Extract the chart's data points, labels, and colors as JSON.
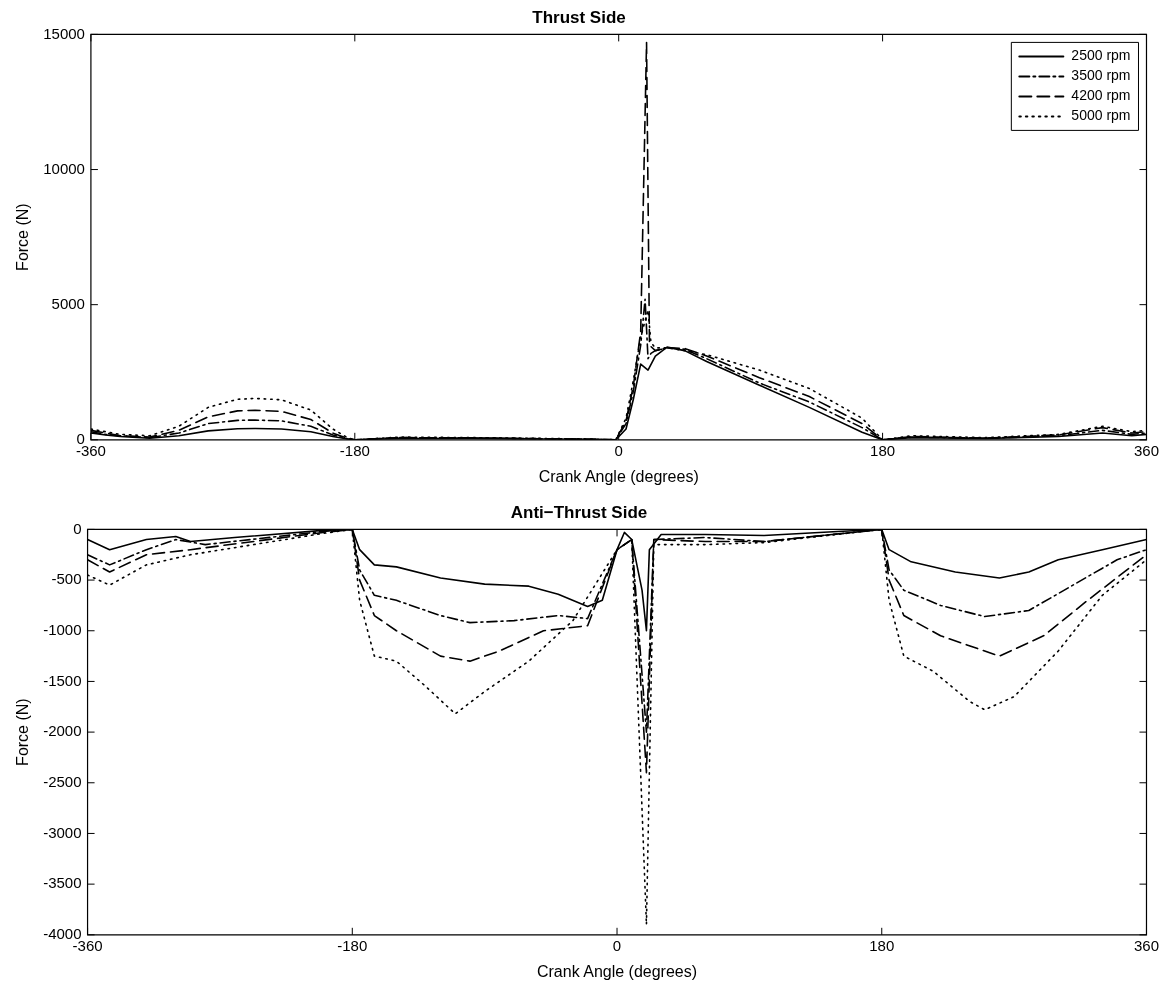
{
  "chart_data": [
    {
      "type": "line",
      "title": "Thrust Side",
      "xlabel": "Crank Angle (degrees)",
      "ylabel": "Force (N)",
      "xlim": [
        -360,
        360
      ],
      "xticks": [
        -360,
        -180,
        0,
        180,
        360
      ],
      "ylim": [
        0,
        15000
      ],
      "yticks": [
        0,
        5000,
        10000,
        15000
      ],
      "legend": "top right",
      "grid": false,
      "marker": "none",
      "series": [
        {
          "name": "2500 rpm",
          "color": "#000000",
          "line_style": "solid",
          "x": [
            -360,
            -350,
            -340,
            -320,
            -300,
            -280,
            -260,
            -248,
            -230,
            -210,
            -195,
            -185,
            -180,
            -150,
            -100,
            -50,
            -20,
            -2,
            5,
            10,
            15,
            20,
            25,
            33,
            45,
            60,
            96,
            130,
            166,
            180,
            200,
            250,
            300,
            330,
            350,
            360
          ],
          "values": [
            250,
            180,
            120,
            60,
            150,
            330,
            410,
            420,
            400,
            300,
            120,
            30,
            0,
            50,
            60,
            30,
            20,
            0,
            400,
            1500,
            2800,
            2580,
            3100,
            3430,
            3300,
            2900,
            2020,
            1200,
            280,
            0,
            80,
            50,
            120,
            250,
            150,
            200
          ]
        },
        {
          "name": "3500 rpm",
          "color": "#000000",
          "line_style": "dashdot",
          "x": [
            -360,
            -350,
            -340,
            -320,
            -300,
            -280,
            -260,
            -248,
            -230,
            -210,
            -195,
            -185,
            -180,
            -150,
            -100,
            -50,
            -20,
            -2,
            5,
            10,
            15,
            18,
            20,
            22,
            25,
            33,
            45,
            60,
            96,
            130,
            166,
            180,
            200,
            250,
            300,
            330,
            350,
            360
          ],
          "values": [
            300,
            200,
            150,
            80,
            250,
            600,
            720,
            730,
            700,
            500,
            180,
            40,
            0,
            80,
            70,
            40,
            20,
            0,
            600,
            1800,
            3500,
            5200,
            3000,
            3200,
            3300,
            3400,
            3350,
            3000,
            2100,
            1400,
            450,
            0,
            100,
            60,
            150,
            350,
            200,
            250
          ]
        },
        {
          "name": "4200 rpm",
          "color": "#000000",
          "line_style": "dashed",
          "x": [
            -360,
            -350,
            -340,
            -320,
            -300,
            -280,
            -260,
            -248,
            -230,
            -210,
            -195,
            -185,
            -180,
            -150,
            -100,
            -50,
            -20,
            -2,
            5,
            10,
            15,
            19,
            21,
            25,
            33,
            45,
            60,
            96,
            130,
            166,
            180,
            200,
            250,
            300,
            330,
            350,
            360
          ],
          "values": [
            350,
            250,
            150,
            100,
            350,
            850,
            1070,
            1090,
            1050,
            750,
            250,
            50,
            0,
            80,
            70,
            40,
            20,
            0,
            700,
            2000,
            4000,
            14700,
            3500,
            3300,
            3400,
            3380,
            3100,
            2300,
            1600,
            600,
            0,
            120,
            60,
            180,
            450,
            250,
            300
          ]
        },
        {
          "name": "5000 rpm",
          "color": "#000000",
          "line_style": "dotted",
          "x": [
            -360,
            -350,
            -340,
            -320,
            -300,
            -280,
            -260,
            -248,
            -230,
            -210,
            -195,
            -185,
            -180,
            -150,
            -100,
            -50,
            -20,
            -2,
            5,
            10,
            15,
            20,
            22,
            25,
            33,
            45,
            60,
            96,
            130,
            166,
            180,
            200,
            250,
            300,
            330,
            350,
            360
          ],
          "values": [
            400,
            300,
            200,
            150,
            500,
            1200,
            1500,
            1530,
            1480,
            1100,
            400,
            80,
            0,
            100,
            80,
            50,
            30,
            0,
            800,
            2200,
            3800,
            4800,
            3600,
            3400,
            3400,
            3300,
            3150,
            2580,
            1900,
            800,
            0,
            150,
            80,
            200,
            500,
            300,
            350
          ]
        }
      ]
    },
    {
      "type": "line",
      "title": "Anti−Thrust Side",
      "xlabel": "Crank Angle (degrees)",
      "ylabel": "Force (N)",
      "xlim": [
        -360,
        360
      ],
      "xticks": [
        -360,
        -180,
        0,
        180,
        360
      ],
      "ylim": [
        -4000,
        0
      ],
      "yticks": [
        -4000,
        -3500,
        -3000,
        -2500,
        -2000,
        -1500,
        -1000,
        -500,
        0
      ],
      "legend": false,
      "grid": false,
      "marker": "none",
      "series": [
        {
          "color": "#000000",
          "line_style": "solid",
          "x": [
            -360,
            -345,
            -320,
            -300,
            -290,
            -260,
            -200,
            -180,
            -175,
            -165,
            -150,
            -120,
            -90,
            -60,
            -40,
            -20,
            -10,
            0,
            5,
            10,
            17,
            20,
            22,
            30,
            60,
            100,
            150,
            180,
            185,
            200,
            230,
            260,
            280,
            300,
            330,
            360
          ],
          "values": [
            -100,
            -200,
            -100,
            -70,
            -120,
            -80,
            -10,
            0,
            -200,
            -350,
            -370,
            -480,
            -540,
            -560,
            -640,
            -760,
            -700,
            -200,
            -30,
            -100,
            -600,
            -1000,
            -200,
            -50,
            -50,
            -60,
            -20,
            0,
            -200,
            -320,
            -420,
            -480,
            -420,
            -300,
            -200,
            -100
          ]
        },
        {
          "color": "#000000",
          "line_style": "dashdot",
          "x": [
            -360,
            -345,
            -320,
            -300,
            -280,
            -200,
            -180,
            -175,
            -165,
            -150,
            -120,
            -100,
            -70,
            -40,
            -20,
            0,
            10,
            20,
            25,
            60,
            100,
            180,
            185,
            195,
            220,
            250,
            280,
            310,
            340,
            360
          ],
          "values": [
            -250,
            -350,
            -200,
            -100,
            -150,
            -20,
            0,
            -400,
            -650,
            -700,
            -850,
            -920,
            -900,
            -850,
            -880,
            -200,
            -100,
            -2000,
            -100,
            -80,
            -120,
            0,
            -400,
            -600,
            -750,
            -860,
            -800,
            -550,
            -300,
            -200
          ]
        },
        {
          "color": "#000000",
          "line_style": "dashed",
          "x": [
            -360,
            -345,
            -320,
            -290,
            -200,
            -180,
            -175,
            -165,
            -150,
            -120,
            -100,
            -80,
            -50,
            -20,
            0,
            10,
            20,
            25,
            60,
            100,
            180,
            185,
            195,
            220,
            240,
            260,
            290,
            320,
            360
          ],
          "values": [
            -300,
            -420,
            -250,
            -200,
            -30,
            0,
            -500,
            -850,
            -1000,
            -1250,
            -1300,
            -1200,
            -1000,
            -950,
            -200,
            -100,
            -2400,
            -100,
            -120,
            -120,
            0,
            -500,
            -850,
            -1050,
            -1150,
            -1250,
            -1050,
            -700,
            -250
          ]
        },
        {
          "color": "#000000",
          "line_style": "dotted",
          "x": [
            -360,
            -345,
            -320,
            -290,
            -200,
            -180,
            -175,
            -165,
            -150,
            -130,
            -110,
            -90,
            -60,
            -30,
            0,
            10,
            20,
            25,
            60,
            100,
            180,
            185,
            195,
            215,
            240,
            250,
            270,
            300,
            330,
            360
          ],
          "values": [
            -450,
            -550,
            -350,
            -250,
            -40,
            0,
            -700,
            -1250,
            -1300,
            -1550,
            -1820,
            -1600,
            -1300,
            -900,
            -200,
            -100,
            -3900,
            -150,
            -150,
            -130,
            0,
            -700,
            -1250,
            -1400,
            -1700,
            -1780,
            -1650,
            -1200,
            -650,
            -300
          ]
        }
      ]
    }
  ]
}
